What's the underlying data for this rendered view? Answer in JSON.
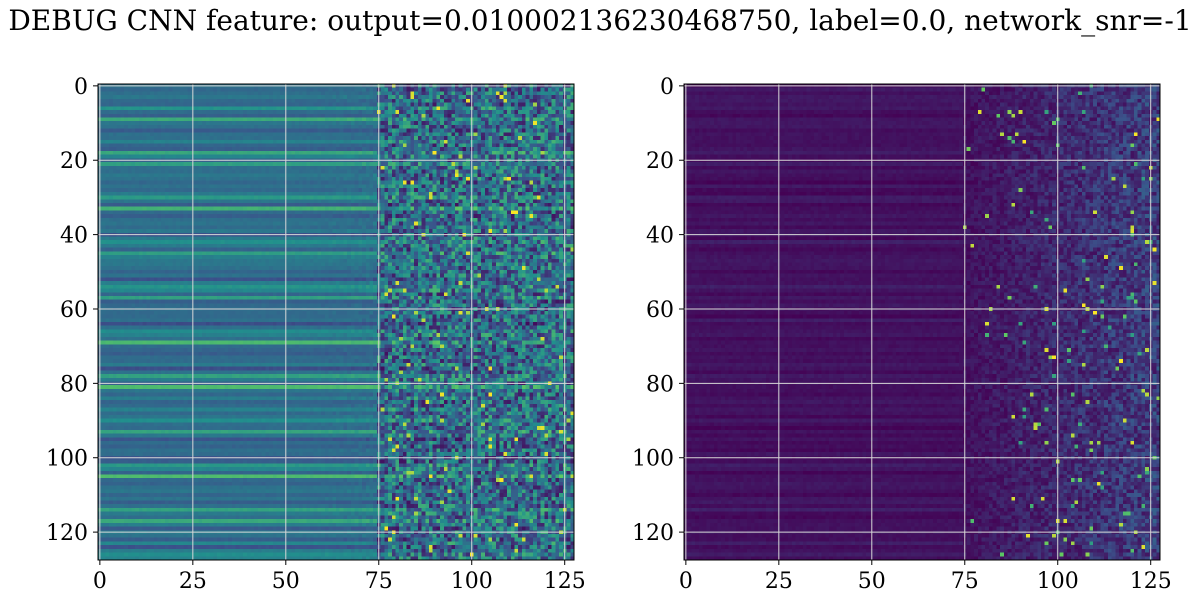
{
  "title": "DEBUG CNN feature: output=0.010002136230468750, label=0.0, network_snr=-1",
  "colormap": [
    "#440154",
    "#3b528b",
    "#21908d",
    "#5dc963",
    "#fde725"
  ],
  "chart_data": [
    {
      "type": "heatmap",
      "title": "",
      "xlabel": "",
      "ylabel": "",
      "xlim": [
        0,
        127
      ],
      "ylim": [
        127,
        0
      ],
      "xticks": [
        0,
        25,
        50,
        75,
        100,
        125
      ],
      "yticks": [
        0,
        20,
        40,
        60,
        80,
        100,
        120
      ],
      "grid": true,
      "rows": 128,
      "cols": 128,
      "value_range": [
        0,
        1
      ],
      "noise_start_col": 75,
      "smooth_mean": 0.38,
      "noise_mean": 0.36,
      "row_profile_sample": [
        0.35,
        0.38,
        0.33,
        0.42,
        0.3,
        0.36,
        0.55,
        0.4,
        0.34,
        0.62,
        0.37,
        0.33
      ]
    },
    {
      "type": "heatmap",
      "title": "",
      "xlabel": "",
      "ylabel": "",
      "xlim": [
        0,
        127
      ],
      "ylim": [
        127,
        0
      ],
      "xticks": [
        0,
        25,
        50,
        75,
        100,
        125
      ],
      "yticks": [
        0,
        20,
        40,
        60,
        80,
        100,
        120
      ],
      "grid": true,
      "rows": 128,
      "cols": 128,
      "value_range": [
        0,
        1
      ],
      "noise_start_col": 75,
      "smooth_mean": 0.05,
      "noise_mean": 0.12,
      "row_profile_sample": [
        0.04,
        0.06,
        0.03,
        0.07,
        0.05,
        0.04,
        0.08,
        0.05,
        0.03,
        0.06,
        0.04,
        0.05
      ]
    }
  ]
}
